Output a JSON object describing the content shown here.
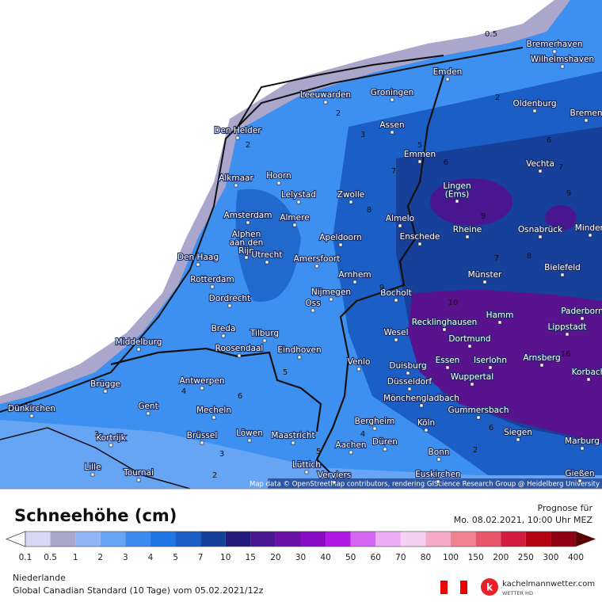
{
  "map": {
    "cities": [
      [
        "Bremerhaven"
      ],
      [
        "Wilhelmshaven"
      ],
      [
        "Emden"
      ],
      [
        "Leeuwarden"
      ],
      [
        "Groningen"
      ],
      [
        "Oldenburg"
      ],
      [
        "Bremen"
      ],
      [
        "Den Helder"
      ],
      [
        "Assen"
      ],
      [
        "Emmen"
      ],
      [
        "Vechta"
      ],
      [
        "Alkmaar"
      ],
      [
        "Hoorn"
      ],
      [
        "Lingen",
        "(Ems)"
      ],
      [
        "Lelystad"
      ],
      [
        "Zwolle"
      ],
      [
        "Amsterdam"
      ],
      [
        "Almere"
      ],
      [
        "Almelo"
      ],
      [
        "Alphen",
        "aan den",
        "Rijn"
      ],
      [
        "Rheine"
      ],
      [
        "Osnabrück"
      ],
      [
        "Minden"
      ],
      [
        "Apeldoorn"
      ],
      [
        "Enschede"
      ],
      [
        "Den Haag"
      ],
      [
        "Utrecht"
      ],
      [
        "Amersfoort"
      ],
      [
        "Bielefeld"
      ],
      [
        "Rotterdam"
      ],
      [
        "Münster"
      ],
      [
        "Arnhem"
      ],
      [
        "Nijmegen"
      ],
      [
        "Bocholt"
      ],
      [
        "Dordrecht"
      ],
      [
        "Oss"
      ],
      [
        "Hamm"
      ],
      [
        "Paderborn"
      ],
      [
        "Recklinghausen"
      ],
      [
        "Lippstadt"
      ],
      [
        "Middelburg"
      ],
      [
        "Breda"
      ],
      [
        "Tilburg"
      ],
      [
        "Wesel"
      ],
      [
        "Dortmund"
      ],
      [
        "Roosendaal"
      ],
      [
        "Eindhoven"
      ],
      [
        "Arnsberg"
      ],
      [
        "Iserlohn"
      ],
      [
        "Essen"
      ],
      [
        "Korbach"
      ],
      [
        "Venlo"
      ],
      [
        "Duisburg"
      ],
      [
        "Wuppertal"
      ],
      [
        "Antwerpen"
      ],
      [
        "Brügge"
      ],
      [
        "Düsseldorf"
      ],
      [
        "Mönchengladbach"
      ],
      [
        "Gent"
      ],
      [
        "Dünkirchen"
      ],
      [
        "Mecheln"
      ],
      [
        "Gummersbach"
      ],
      [
        "Bergheim"
      ],
      [
        "Köln"
      ],
      [
        "Siegen"
      ],
      [
        "Löwen"
      ],
      [
        "Maastricht"
      ],
      [
        "Brüssel"
      ],
      [
        "Kortrijk"
      ],
      [
        "Düren"
      ],
      [
        "Marburg"
      ],
      [
        "Aachen"
      ],
      [
        "Bonn"
      ],
      [
        "Tournai"
      ],
      [
        "Lille"
      ],
      [
        "Lüttich"
      ],
      [
        "Euskirchen"
      ],
      [
        "Verviers"
      ],
      [
        "Gießen"
      ]
    ],
    "contour_labels": [
      0.5,
      2,
      2,
      2,
      3,
      5,
      6,
      6,
      7,
      7,
      8,
      9,
      9,
      8,
      7,
      9,
      10,
      16,
      5,
      6,
      4,
      3,
      2,
      4,
      5,
      3,
      2,
      6
    ],
    "attribution": "Map data © OpenStreetMap contributors, rendering GIScience Research Group @ Heidelberg University"
  },
  "legend": {
    "title": "Schneehöhe (cm)",
    "forecast_label": "Prognose für",
    "forecast_time": "Mo. 08.02.2021, 10:00 Uhr MEZ",
    "levels": [
      0.1,
      0.5,
      1,
      2,
      3,
      4,
      5,
      7,
      10,
      15,
      20,
      30,
      40,
      50,
      60,
      70,
      80,
      100,
      150,
      200,
      250,
      300,
      400
    ],
    "colors": [
      "#d8d8f6",
      "#aaa6cc",
      "#8fb6f6",
      "#66a4f4",
      "#3b8cee",
      "#1f76e4",
      "#1b5fc6",
      "#17409a",
      "#231c7e",
      "#4a1690",
      "#6a10a6",
      "#8a0cc4",
      "#b018e6",
      "#d466f2",
      "#ecacf6",
      "#f6d0f2",
      "#f6aac6",
      "#f08292",
      "#e8566a",
      "#d41c3e",
      "#b40414",
      "#8e0012"
    ]
  },
  "footer": {
    "region": "Niederlande",
    "model": "Global Canadian Standard (10 Tage) vom 05.02.2021/12z",
    "brand": "kachelmannwetter.com",
    "brand_sub": "WETTER HD"
  }
}
